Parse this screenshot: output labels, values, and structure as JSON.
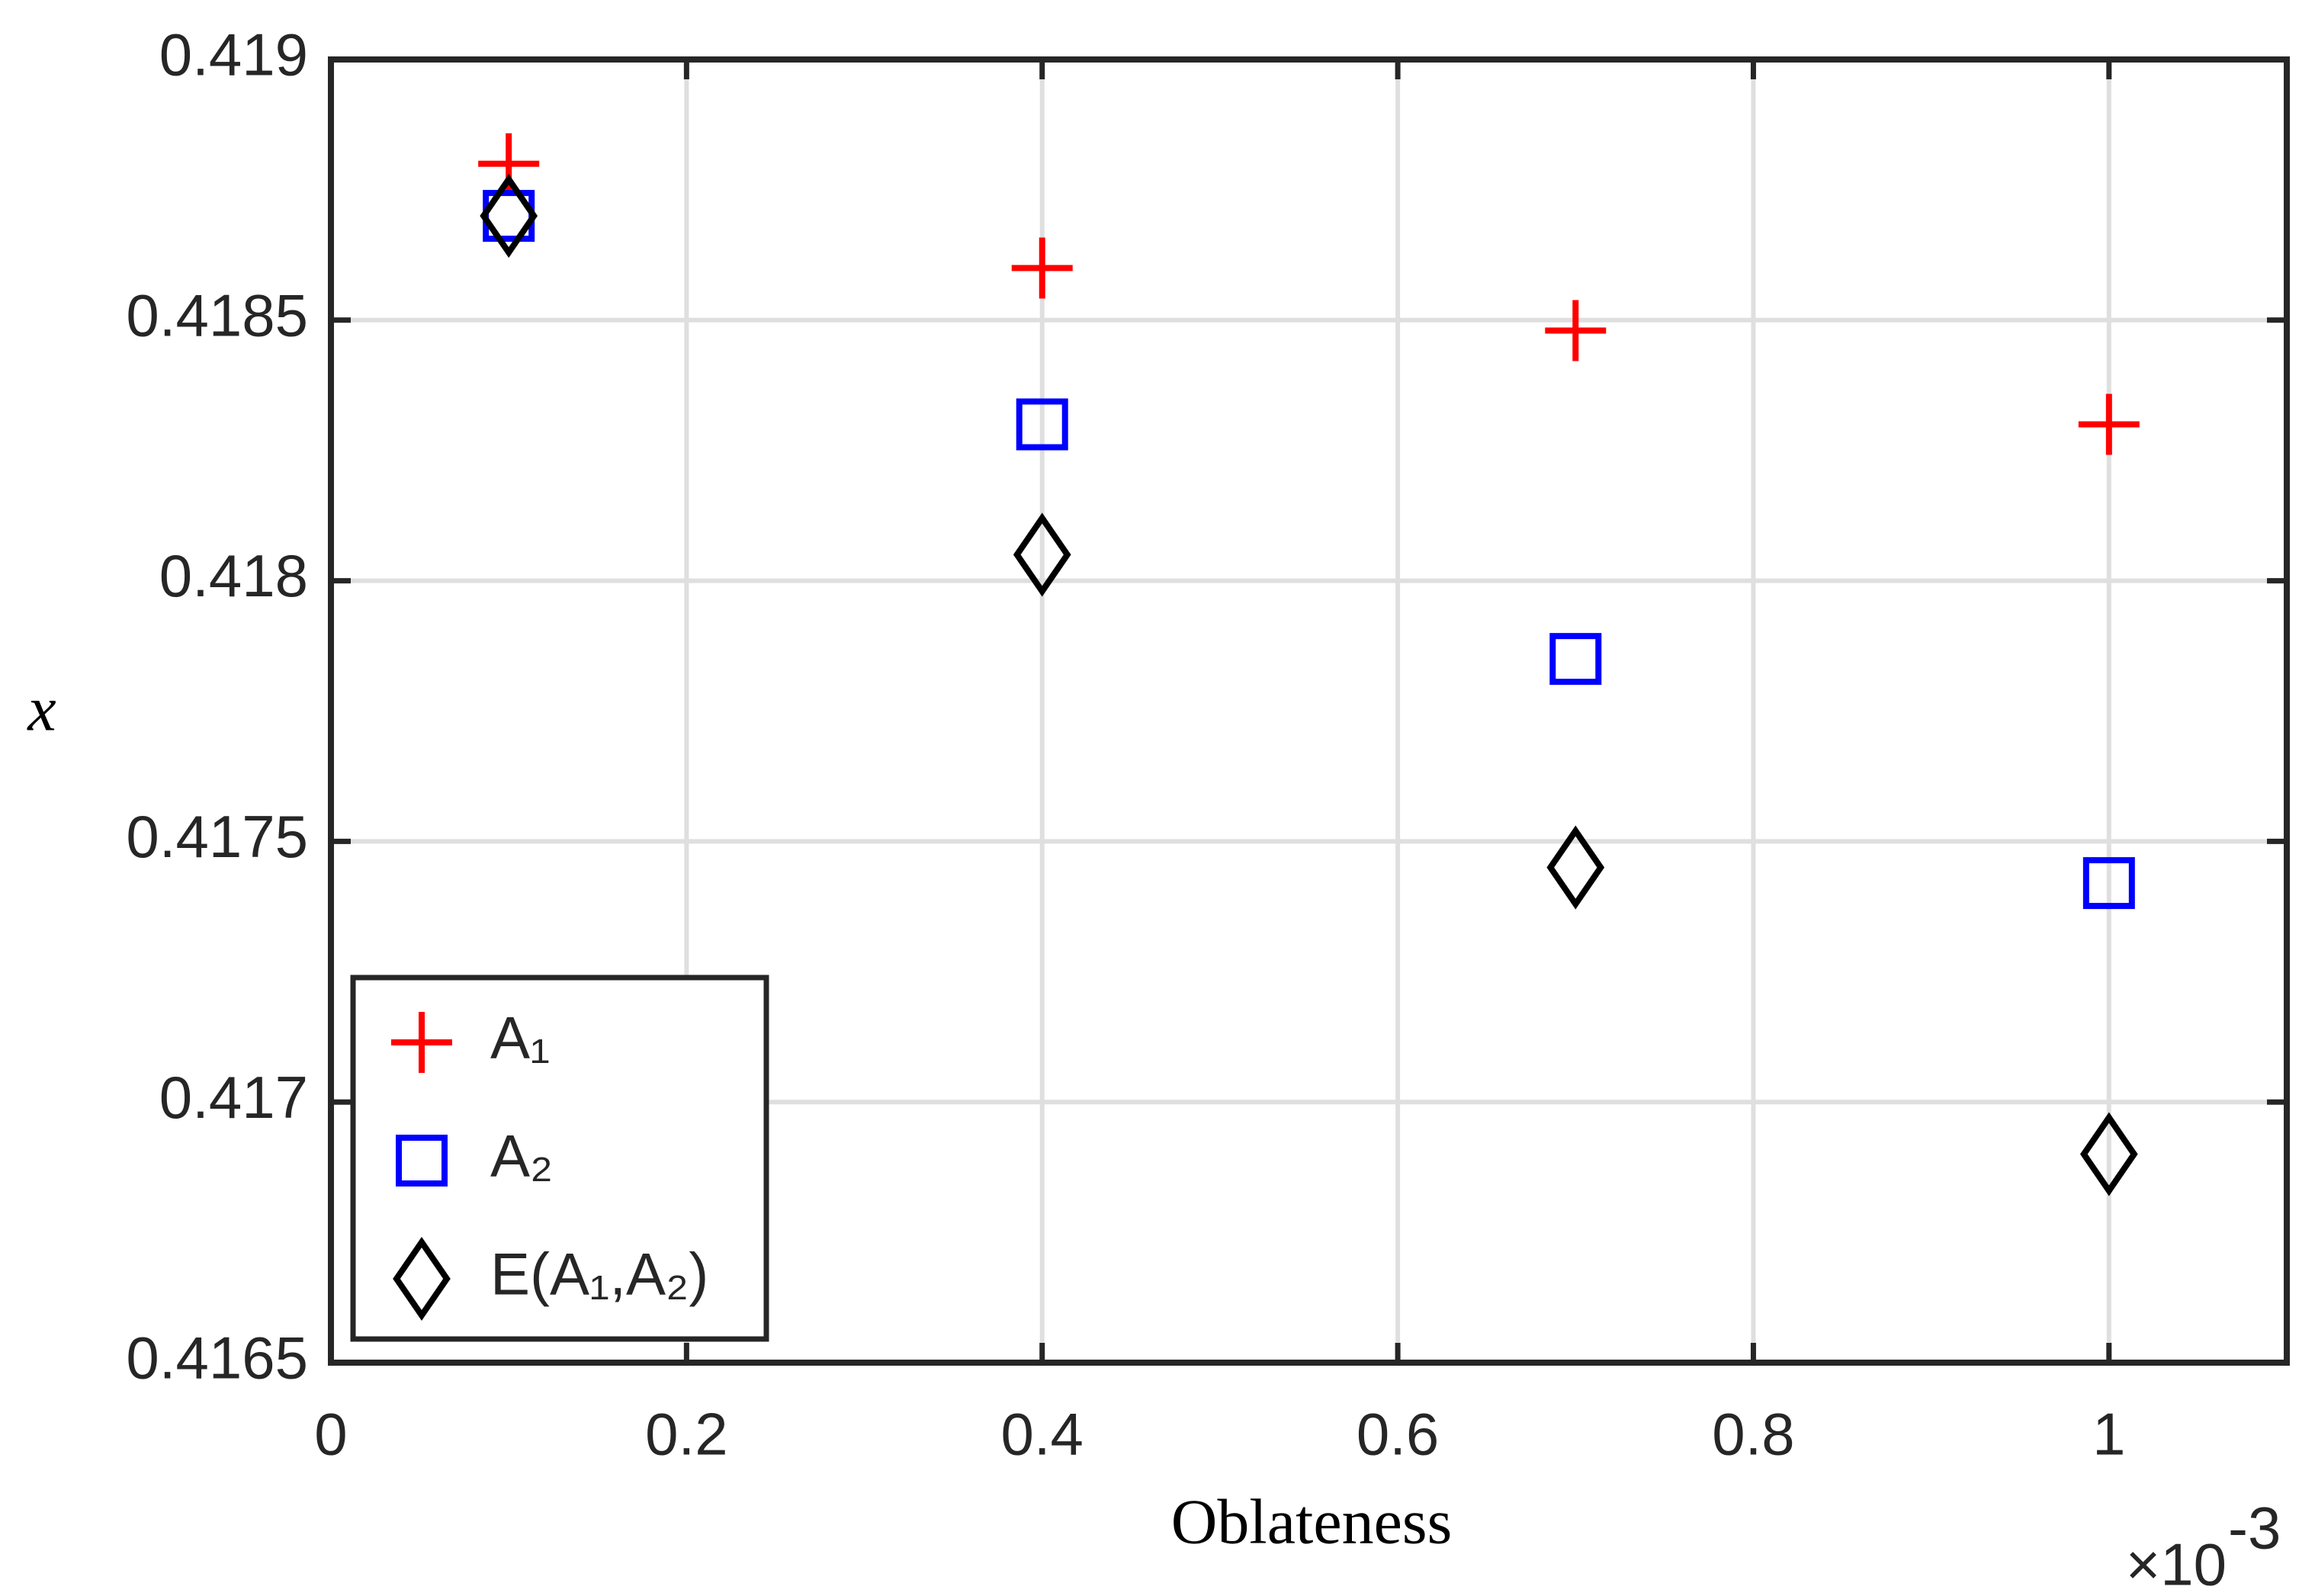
{
  "chart_data": {
    "type": "scatter",
    "x_label": "Oblateness",
    "y_label": "x",
    "x_multiplier": "×10",
    "x_multiplier_exponent": "-3",
    "x": [
      0.1,
      0.4,
      0.7,
      1.0
    ],
    "series": [
      {
        "name": "A₁",
        "color": "#ff0000",
        "marker": "plus",
        "values": [
          0.4188,
          0.4186,
          0.41848,
          0.4183
        ]
      },
      {
        "name": "A₂",
        "color": "#0000ff",
        "marker": "square",
        "values": [
          0.4187,
          0.4183,
          0.41785,
          0.41742
        ]
      },
      {
        "name": "E(A₁,A₂)",
        "color": "#000000",
        "marker": "diamond",
        "values": [
          0.4187,
          0.41805,
          0.41745,
          0.4169
        ]
      }
    ],
    "xlim": [
      0,
      1.1
    ],
    "xticks": [
      0,
      0.2,
      0.4,
      0.6,
      0.8,
      1
    ],
    "ylim": [
      0.4165,
      0.419
    ],
    "yticks": [
      0.4165,
      0.417,
      0.4175,
      0.418,
      0.4185,
      0.419
    ],
    "grid": true,
    "legend": "lower left"
  }
}
